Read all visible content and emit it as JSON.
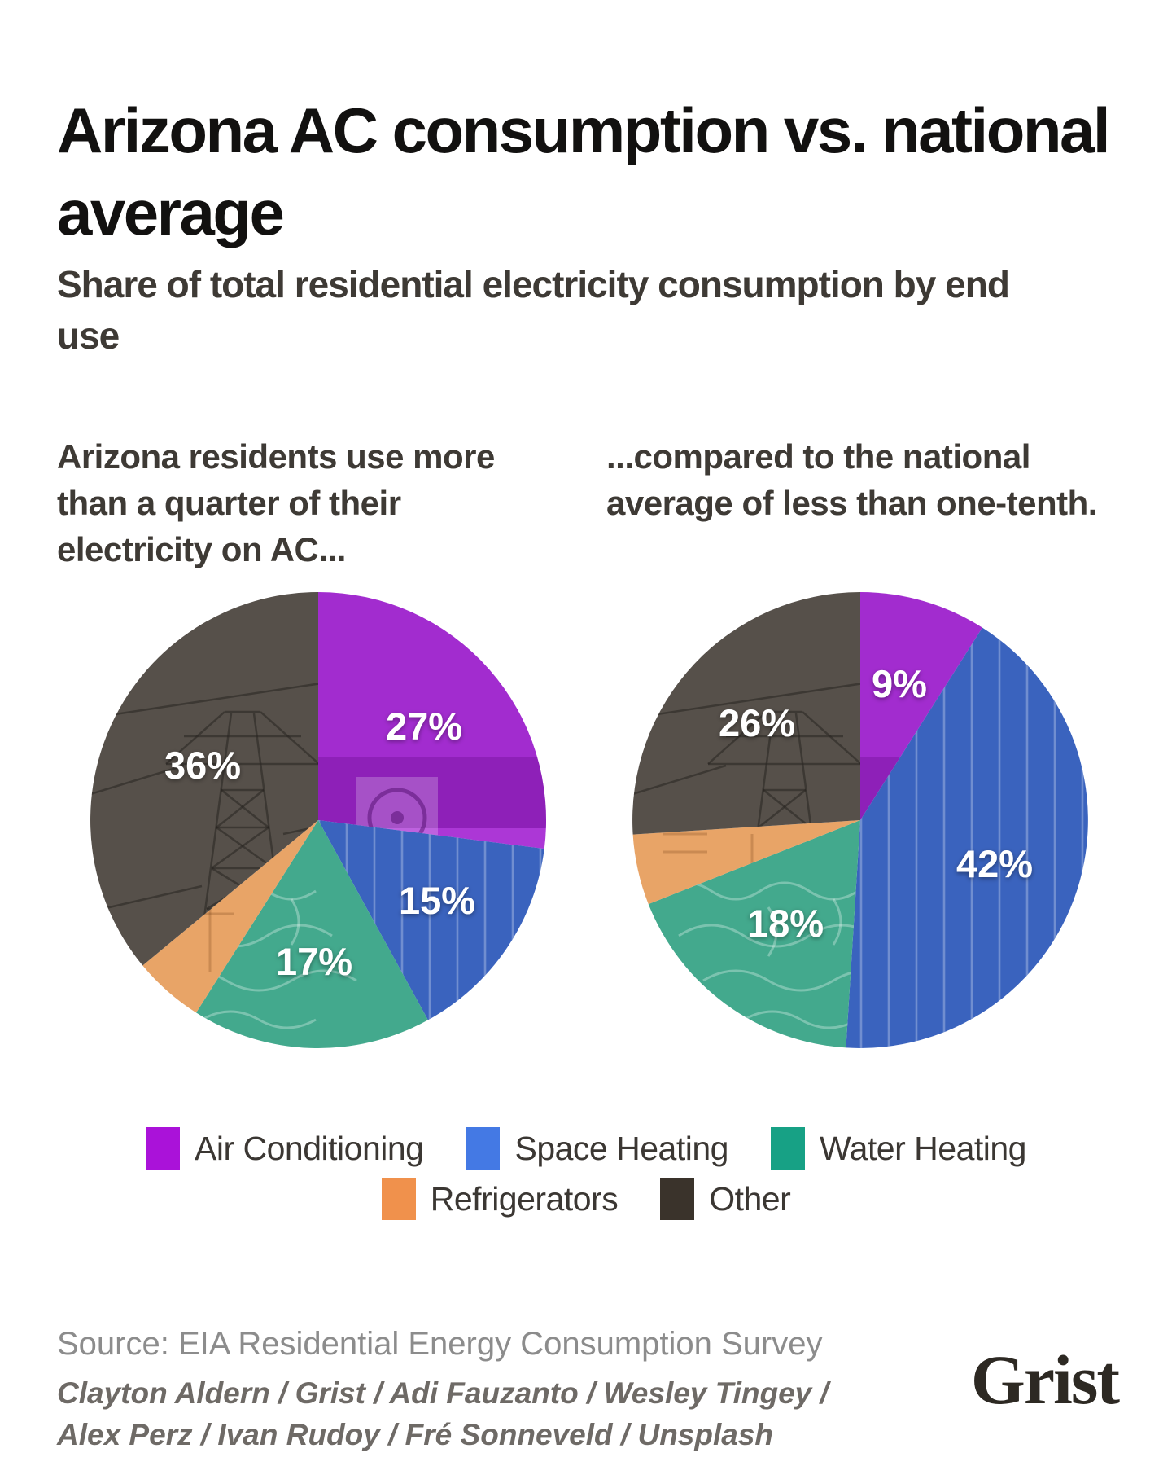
{
  "header": {
    "title": "Arizona AC consumption vs. national average",
    "subtitle": "Share of total residential electricity consumption by end use"
  },
  "intros": {
    "left": "Arizona residents use more than a quarter of their electricity on AC...",
    "right": "...compared to the national average of less than one-tenth."
  },
  "chart_data": {
    "type": "pie",
    "unit": "%",
    "direction": "clockwise",
    "start_angle_deg": 0,
    "legend_position": "bottom",
    "categories": [
      {
        "name": "Air Conditioning",
        "legend_color": "#aa12d9",
        "pie_color": "#a22ccf"
      },
      {
        "name": "Space Heating",
        "legend_color": "#4479e4",
        "pie_color": "#3a63be"
      },
      {
        "name": "Water Heating",
        "legend_color": "#17a185",
        "pie_color": "#43a98d"
      },
      {
        "name": "Refrigerators",
        "legend_color": "#f0914c",
        "pie_color": "#e8a467"
      },
      {
        "name": "Other",
        "legend_color": "#3a332b",
        "pie_color": "#56504a"
      }
    ],
    "series": [
      {
        "name": "Arizona",
        "values": [
          27,
          15,
          17,
          5,
          36
        ],
        "shown_labels": [
          "27%",
          "15%",
          "17%",
          "",
          "36%"
        ]
      },
      {
        "name": "National average",
        "values": [
          9,
          42,
          18,
          5,
          26
        ],
        "shown_labels": [
          "9%",
          "42%",
          "18%",
          "",
          "26%"
        ]
      }
    ],
    "label_text_color": "#ffffff"
  },
  "footer": {
    "source": "Source: EIA Residential Energy Consumption Survey",
    "credits_line1": "Clayton Aldern / Grist / Adi Fauzanto / Wesley Tingey /",
    "credits_line2": "Alex Perz / Ivan Rudoy / Fré Sonneveld / Unsplash",
    "logo_text": "Grist"
  }
}
